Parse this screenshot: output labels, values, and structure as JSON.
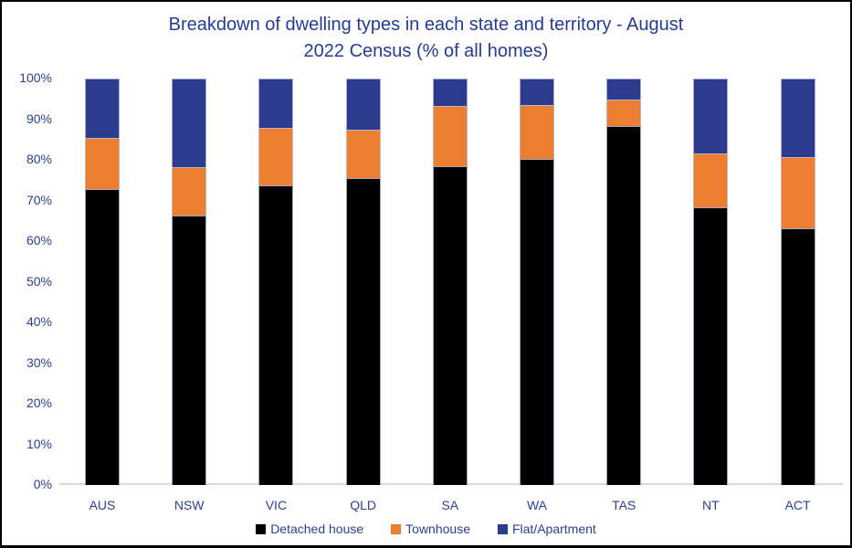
{
  "title_lines": [
    "Breakdown of dwelling types in each state and territory - August",
    "2022 Census (% of all homes)"
  ],
  "chart_data": {
    "type": "bar",
    "subtype": "stacked-100",
    "title": "Breakdown of dwelling types in each state and territory - August 2022 Census (% of all homes)",
    "categories": [
      "AUS",
      "NSW",
      "VIC",
      "QLD",
      "SA",
      "WA",
      "TAS",
      "NT",
      "ACT"
    ],
    "series": [
      {
        "name": "Detached house",
        "color": "#000000",
        "values": [
          72.8,
          66.4,
          73.8,
          75.4,
          78.5,
          80.2,
          88.4,
          68.4,
          63.1
        ]
      },
      {
        "name": "Townhouse",
        "color": "#ED7D31",
        "values": [
          12.7,
          11.7,
          14.1,
          12.1,
          14.7,
          13.3,
          6.4,
          13.2,
          17.5
        ]
      },
      {
        "name": "Flat/Apartment",
        "color": "#2C3B8E",
        "values": [
          14.5,
          21.9,
          12.1,
          12.5,
          6.8,
          6.5,
          5.2,
          18.4,
          19.4
        ]
      }
    ],
    "y_ticks": [
      "0%",
      "10%",
      "20%",
      "30%",
      "40%",
      "50%",
      "60%",
      "70%",
      "80%",
      "90%",
      "100%"
    ],
    "ylim": [
      0,
      100
    ],
    "xlabel": "",
    "ylabel": "",
    "grid": false,
    "legend_position": "bottom"
  },
  "colors": {
    "text": "#2B3F96",
    "title_text": "#243B97",
    "axis_line": "#D9D9D9",
    "background": "#FFFFFF",
    "frame_border": "#000000"
  }
}
